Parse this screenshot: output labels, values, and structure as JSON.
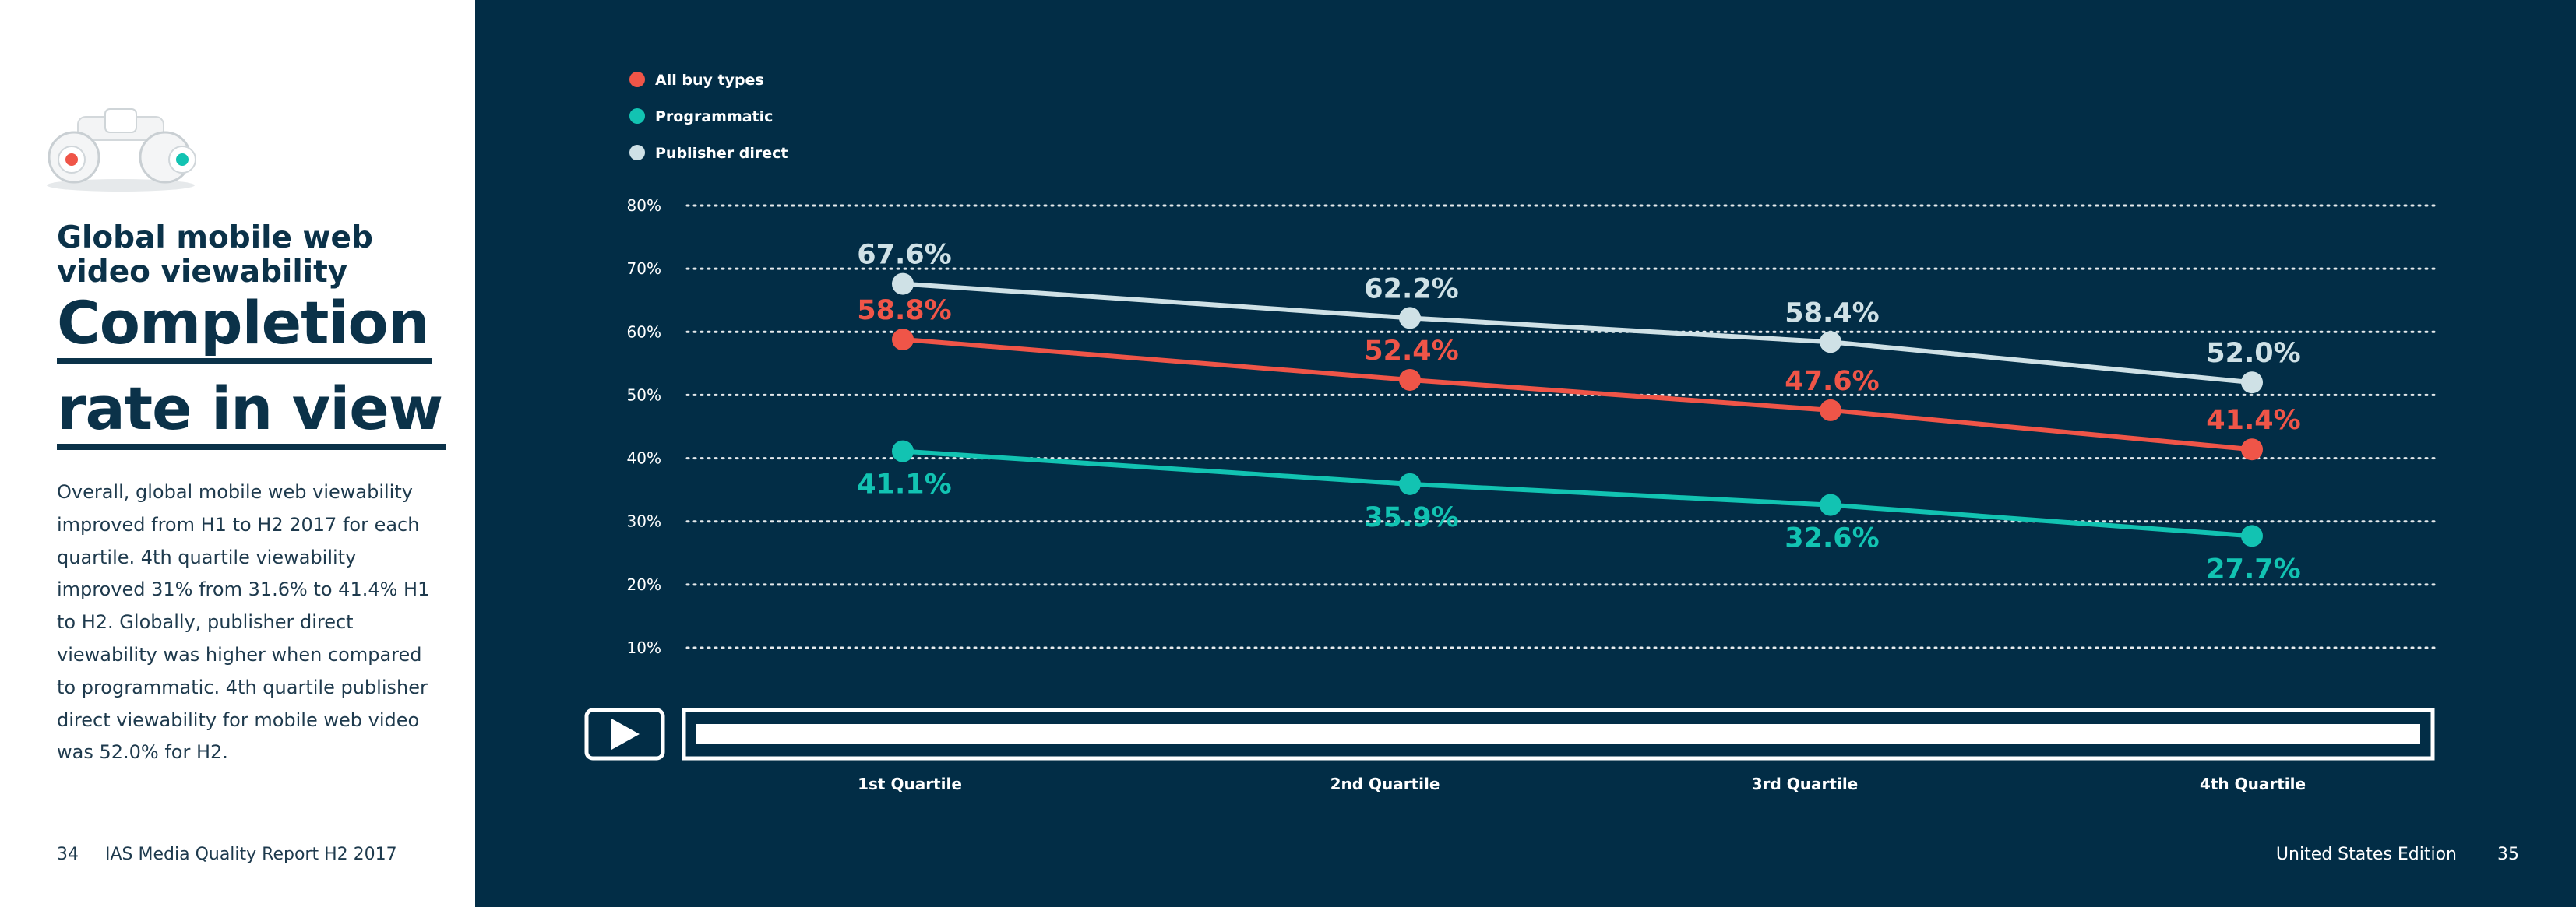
{
  "header": {
    "subtitle": "Global mobile web video viewability",
    "title_line_1": "Completion",
    "title_line_2": "rate in view"
  },
  "body": {
    "paragraph": "Overall, global mobile web viewability improved from H1 to H2 2017 for each quartile. 4th quartile viewability improved 31% from 31.6% to 41.4% H1 to H2. Globally, publisher direct viewability was higher when compared to programmatic. 4th quartile publisher direct viewability for mobile web video was 52.0% for H2."
  },
  "footer": {
    "left_page": "34",
    "left_report": "IAS Media Quality Report H2 2017",
    "right_edition": "United States Edition",
    "right_page": "35"
  },
  "icons": {
    "binoculars": "binoculars-icon",
    "play": "play-icon"
  },
  "colors": {
    "panel_bg": "#022d46",
    "title": "#0b3249",
    "all_buy_types": "#ef5548",
    "programmatic": "#12c3b2",
    "publisher_direct": "#cfe1e6"
  },
  "chart_data": {
    "type": "line",
    "title": "Completion rate in view",
    "categories": [
      "1st Quartile",
      "2nd Quartile",
      "3rd Quartile",
      "4th Quartile"
    ],
    "ylim": [
      10,
      80
    ],
    "y_ticks": [
      80,
      70,
      60,
      50,
      40,
      30,
      20,
      10
    ],
    "y_tick_labels": [
      "80%",
      "70%",
      "60%",
      "50%",
      "40%",
      "30%",
      "20%",
      "10%"
    ],
    "grid": true,
    "legend_position": "top-left",
    "series": [
      {
        "name": "All buy types",
        "color": "#ef5548",
        "values": [
          58.8,
          52.4,
          47.6,
          41.4
        ],
        "labels": [
          "58.8%",
          "52.4%",
          "47.6%",
          "41.4%"
        ],
        "label_position": "above"
      },
      {
        "name": "Programmatic",
        "color": "#12c3b2",
        "values": [
          41.1,
          35.9,
          32.6,
          27.7
        ],
        "labels": [
          "41.1%",
          "35.9%",
          "32.6%",
          "27.7%"
        ],
        "label_position": "below"
      },
      {
        "name": "Publisher direct",
        "color": "#cfe1e6",
        "values": [
          67.6,
          62.2,
          58.4,
          52.0
        ],
        "labels": [
          "67.6%",
          "62.2%",
          "58.4%",
          "52.0%"
        ],
        "label_position": "above"
      }
    ]
  }
}
